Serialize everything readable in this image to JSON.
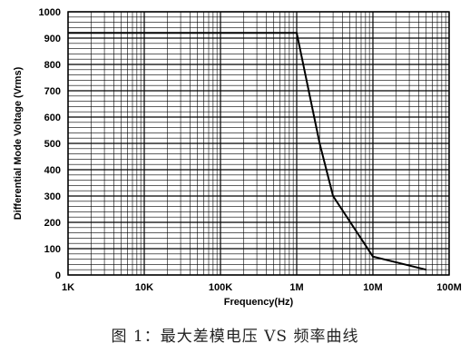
{
  "chart_data": {
    "type": "line",
    "x_scale": "log",
    "y_scale": "linear",
    "xlabel": "Frequency(Hz)",
    "ylabel": "Differential Mode Voltage (Vrms)",
    "xlim": [
      1000,
      100000000
    ],
    "ylim": [
      0,
      1000
    ],
    "x_ticks": [
      {
        "value": 1000,
        "label": "1K"
      },
      {
        "value": 10000,
        "label": "10K"
      },
      {
        "value": 100000,
        "label": "100K"
      },
      {
        "value": 1000000,
        "label": "1M"
      },
      {
        "value": 10000000,
        "label": "10M"
      },
      {
        "value": 100000000,
        "label": "100M"
      }
    ],
    "y_ticks": [
      0,
      100,
      200,
      300,
      400,
      500,
      600,
      700,
      800,
      900,
      1000
    ],
    "grid": true,
    "series": [
      {
        "color": "#000000",
        "points": [
          {
            "x": 1000,
            "y": 920
          },
          {
            "x": 1000000,
            "y": 920
          },
          {
            "x": 2000000,
            "y": 500
          },
          {
            "x": 3000000,
            "y": 300
          },
          {
            "x": 10000000,
            "y": 70
          },
          {
            "x": 50000000,
            "y": 20
          }
        ]
      }
    ]
  },
  "caption": "图 1：最大差模电压 VS 频率曲线"
}
